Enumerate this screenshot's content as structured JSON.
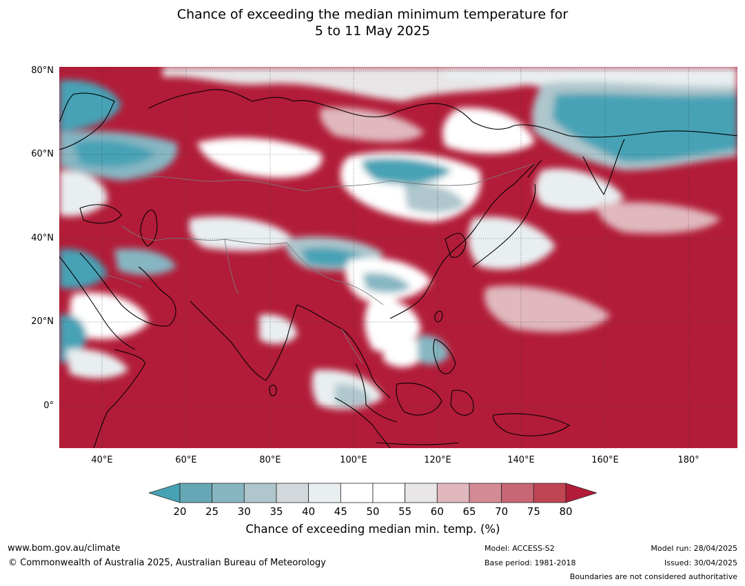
{
  "title": {
    "line1": "Chance of exceeding the median minimum temperature for",
    "line2": "5 to 11 May 2025"
  },
  "map": {
    "lat_labels": [
      "80°N",
      "60°N",
      "40°N",
      "20°N",
      "0°"
    ],
    "lon_labels": [
      "40°E",
      "60°E",
      "80°E",
      "100°E",
      "120°E",
      "140°E",
      "160°E",
      "180°"
    ],
    "dominant_color": "#b21c38"
  },
  "colorbar": {
    "ticks": [
      "20",
      "25",
      "30",
      "35",
      "40",
      "45",
      "50",
      "55",
      "60",
      "65",
      "70",
      "75",
      "80"
    ],
    "colors": [
      "#67a7b5",
      "#86b6c2",
      "#aec6cc",
      "#d2d8db",
      "#e9eff1",
      "#ffffff",
      "#ffffff",
      "#e8e6e7",
      "#e0b8be",
      "#d48b95",
      "#c86774",
      "#bf4552"
    ],
    "under_color": "#47a2b5",
    "over_color": "#b21c38",
    "label": "Chance of exceeding median min. temp. (%)"
  },
  "footer": {
    "website": "www.bom.gov.au/climate",
    "copyright": "© Commonwealth of Australia 2025, Australian Bureau of Meteorology",
    "model": "Model: ACCESS-S2",
    "base_period": "Base period: 1981-2018",
    "model_run": "Model run: 28/04/2025",
    "issued": "Issued: 30/04/2025",
    "disclaimer": "Boundaries are not considered authoritative"
  }
}
